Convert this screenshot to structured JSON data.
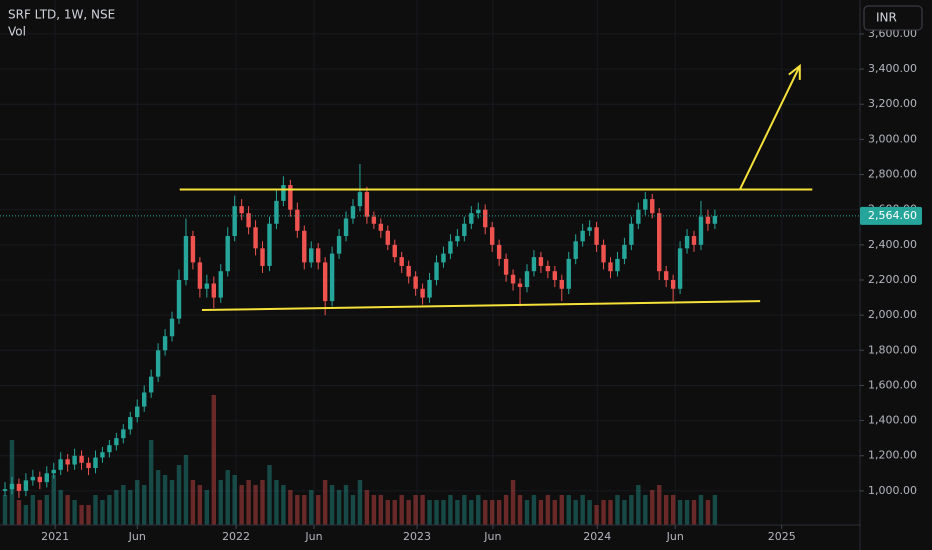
{
  "chart_data": {
    "type": "candlestick",
    "symbol": "SRF LTD, 1W, NSE",
    "volume_label": "Vol",
    "currency": "INR",
    "up_color": "#26a69a",
    "down_color": "#ef5350",
    "annotation_color": "#f5e13a",
    "grid": true,
    "xlim": [
      -0.72,
      122.85
    ],
    "ylim": [
      806,
      3793
    ],
    "vlim": [
      0,
      140
    ],
    "xticks": [
      {
        "value": 7.2,
        "label": "2021"
      },
      {
        "value": 19.0,
        "label": "Jun"
      },
      {
        "value": 33.2,
        "label": "2022"
      },
      {
        "value": 44.4,
        "label": "Jun"
      },
      {
        "value": 59.2,
        "label": "2023"
      },
      {
        "value": 70.1,
        "label": "Jun"
      },
      {
        "value": 85.1,
        "label": "2024"
      },
      {
        "value": 96.3,
        "label": "Jun"
      },
      {
        "value": 111.6,
        "label": "2025"
      }
    ],
    "yticks": [
      {
        "value": 1000,
        "label": "1,000.00"
      },
      {
        "value": 1200,
        "label": "1,200.00"
      },
      {
        "value": 1400,
        "label": "1,400.00"
      },
      {
        "value": 1600,
        "label": "1,600.00"
      },
      {
        "value": 1800,
        "label": "1,800.00"
      },
      {
        "value": 2000,
        "label": "2,000.00"
      },
      {
        "value": 2200,
        "label": "2,200.00"
      },
      {
        "value": 2400,
        "label": "2,400.00"
      },
      {
        "value": 2600,
        "label": "2,600.00"
      },
      {
        "value": 2800,
        "label": "2,800.00"
      },
      {
        "value": 3000,
        "label": "3,000.00"
      },
      {
        "value": 3200,
        "label": "3,200.00"
      },
      {
        "value": 3400,
        "label": "3,400.00"
      },
      {
        "value": 3600,
        "label": "3,600.00"
      }
    ],
    "open": [
      1000,
      1010,
      1040,
      1000,
      1060,
      1080,
      1050,
      1100,
      1120,
      1180,
      1150,
      1200,
      1160,
      1130,
      1190,
      1220,
      1260,
      1300,
      1350,
      1420,
      1480,
      1560,
      1650,
      1800,
      1880,
      1980,
      2200,
      2450,
      2300,
      2150,
      2180,
      2100,
      2250,
      2450,
      2620,
      2580,
      2500,
      2380,
      2280,
      2520,
      2650,
      2740,
      2600,
      2480,
      2300,
      2380,
      2300,
      2080,
      2350,
      2450,
      2550,
      2620,
      2700,
      2560,
      2520,
      2480,
      2400,
      2330,
      2280,
      2220,
      2150,
      2100,
      2200,
      2300,
      2350,
      2420,
      2450,
      2520,
      2580,
      2600,
      2500,
      2400,
      2320,
      2230,
      2180,
      2160,
      2250,
      2330,
      2280,
      2250,
      2200,
      2150,
      2320,
      2420,
      2480,
      2500,
      2400,
      2300,
      2250,
      2320,
      2400,
      2520,
      2600,
      2660,
      2580,
      2250,
      2200,
      2150,
      2380,
      2450,
      2400,
      2560,
      2520
    ],
    "high": [
      1050,
      1080,
      1070,
      1100,
      1120,
      1110,
      1140,
      1160,
      1220,
      1210,
      1240,
      1230,
      1190,
      1230,
      1250,
      1290,
      1330,
      1380,
      1450,
      1520,
      1600,
      1690,
      1840,
      1920,
      2020,
      2260,
      2550,
      2480,
      2330,
      2230,
      2220,
      2290,
      2500,
      2680,
      2660,
      2620,
      2540,
      2420,
      2560,
      2720,
      2790,
      2770,
      2640,
      2510,
      2420,
      2410,
      2330,
      2390,
      2490,
      2590,
      2660,
      2860,
      2730,
      2590,
      2550,
      2510,
      2430,
      2360,
      2310,
      2250,
      2180,
      2240,
      2340,
      2390,
      2460,
      2490,
      2560,
      2620,
      2640,
      2630,
      2530,
      2430,
      2350,
      2260,
      2210,
      2290,
      2370,
      2360,
      2310,
      2280,
      2230,
      2360,
      2460,
      2520,
      2540,
      2530,
      2430,
      2330,
      2360,
      2440,
      2560,
      2640,
      2700,
      2690,
      2610,
      2280,
      2230,
      2420,
      2490,
      2480,
      2650,
      2600,
      2600
    ],
    "low": [
      970,
      980,
      960,
      970,
      1030,
      1010,
      1020,
      1070,
      1090,
      1110,
      1120,
      1120,
      1090,
      1100,
      1160,
      1190,
      1230,
      1270,
      1320,
      1390,
      1450,
      1530,
      1620,
      1770,
      1850,
      1950,
      2170,
      2260,
      2100,
      2100,
      2040,
      2070,
      2220,
      2420,
      2540,
      2460,
      2340,
      2240,
      2250,
      2490,
      2620,
      2560,
      2440,
      2260,
      2270,
      2260,
      2000,
      2050,
      2320,
      2420,
      2520,
      2590,
      2520,
      2490,
      2440,
      2370,
      2300,
      2240,
      2180,
      2110,
      2060,
      2070,
      2170,
      2270,
      2320,
      2390,
      2420,
      2490,
      2550,
      2460,
      2360,
      2280,
      2190,
      2140,
      2050,
      2130,
      2220,
      2240,
      2210,
      2160,
      2080,
      2120,
      2290,
      2390,
      2450,
      2360,
      2260,
      2210,
      2220,
      2290,
      2370,
      2490,
      2570,
      2550,
      2200,
      2160,
      2080,
      2120,
      2350,
      2360,
      2370,
      2480,
      2490
    ],
    "close": [
      1010,
      1040,
      1000,
      1060,
      1080,
      1050,
      1100,
      1120,
      1180,
      1150,
      1200,
      1160,
      1130,
      1190,
      1220,
      1260,
      1300,
      1350,
      1420,
      1480,
      1560,
      1650,
      1800,
      1880,
      1980,
      2200,
      2450,
      2300,
      2150,
      2180,
      2100,
      2250,
      2450,
      2620,
      2580,
      2500,
      2380,
      2280,
      2520,
      2650,
      2740,
      2600,
      2480,
      2300,
      2380,
      2300,
      2080,
      2350,
      2450,
      2550,
      2620,
      2700,
      2560,
      2520,
      2480,
      2400,
      2330,
      2280,
      2220,
      2150,
      2100,
      2200,
      2300,
      2350,
      2420,
      2450,
      2520,
      2580,
      2600,
      2500,
      2400,
      2320,
      2230,
      2180,
      2160,
      2250,
      2330,
      2280,
      2250,
      2200,
      2150,
      2320,
      2420,
      2480,
      2500,
      2400,
      2300,
      2250,
      2320,
      2400,
      2520,
      2600,
      2660,
      2580,
      2250,
      2200,
      2150,
      2380,
      2450,
      2400,
      2560,
      2520,
      2564.6
    ],
    "volume": [
      30,
      85,
      25,
      20,
      30,
      25,
      30,
      50,
      35,
      30,
      25,
      20,
      20,
      30,
      25,
      30,
      35,
      40,
      35,
      45,
      40,
      85,
      55,
      50,
      45,
      60,
      70,
      45,
      40,
      35,
      130,
      45,
      55,
      50,
      40,
      45,
      40,
      45,
      60,
      45,
      40,
      35,
      30,
      30,
      35,
      30,
      45,
      40,
      35,
      40,
      30,
      45,
      35,
      30,
      30,
      25,
      25,
      30,
      25,
      30,
      30,
      25,
      25,
      25,
      30,
      25,
      30,
      25,
      30,
      25,
      25,
      25,
      30,
      45,
      30,
      25,
      30,
      25,
      30,
      25,
      30,
      30,
      25,
      30,
      25,
      20,
      25,
      25,
      30,
      25,
      30,
      40,
      30,
      35,
      40,
      30,
      30,
      25,
      25,
      25,
      30,
      25,
      30
    ],
    "last_price": {
      "value": 2564.6,
      "label": "2,564.60"
    },
    "trend_lines": [
      {
        "x": [
          25.1,
          116.0
        ],
        "y": [
          2715,
          2715
        ]
      },
      {
        "x": [
          28.3,
          108.5
        ],
        "y": [
          2029,
          2080
        ]
      }
    ],
    "arrow": {
      "x": [
        105.6,
        114.2
      ],
      "y": [
        2715,
        3418
      ]
    }
  }
}
